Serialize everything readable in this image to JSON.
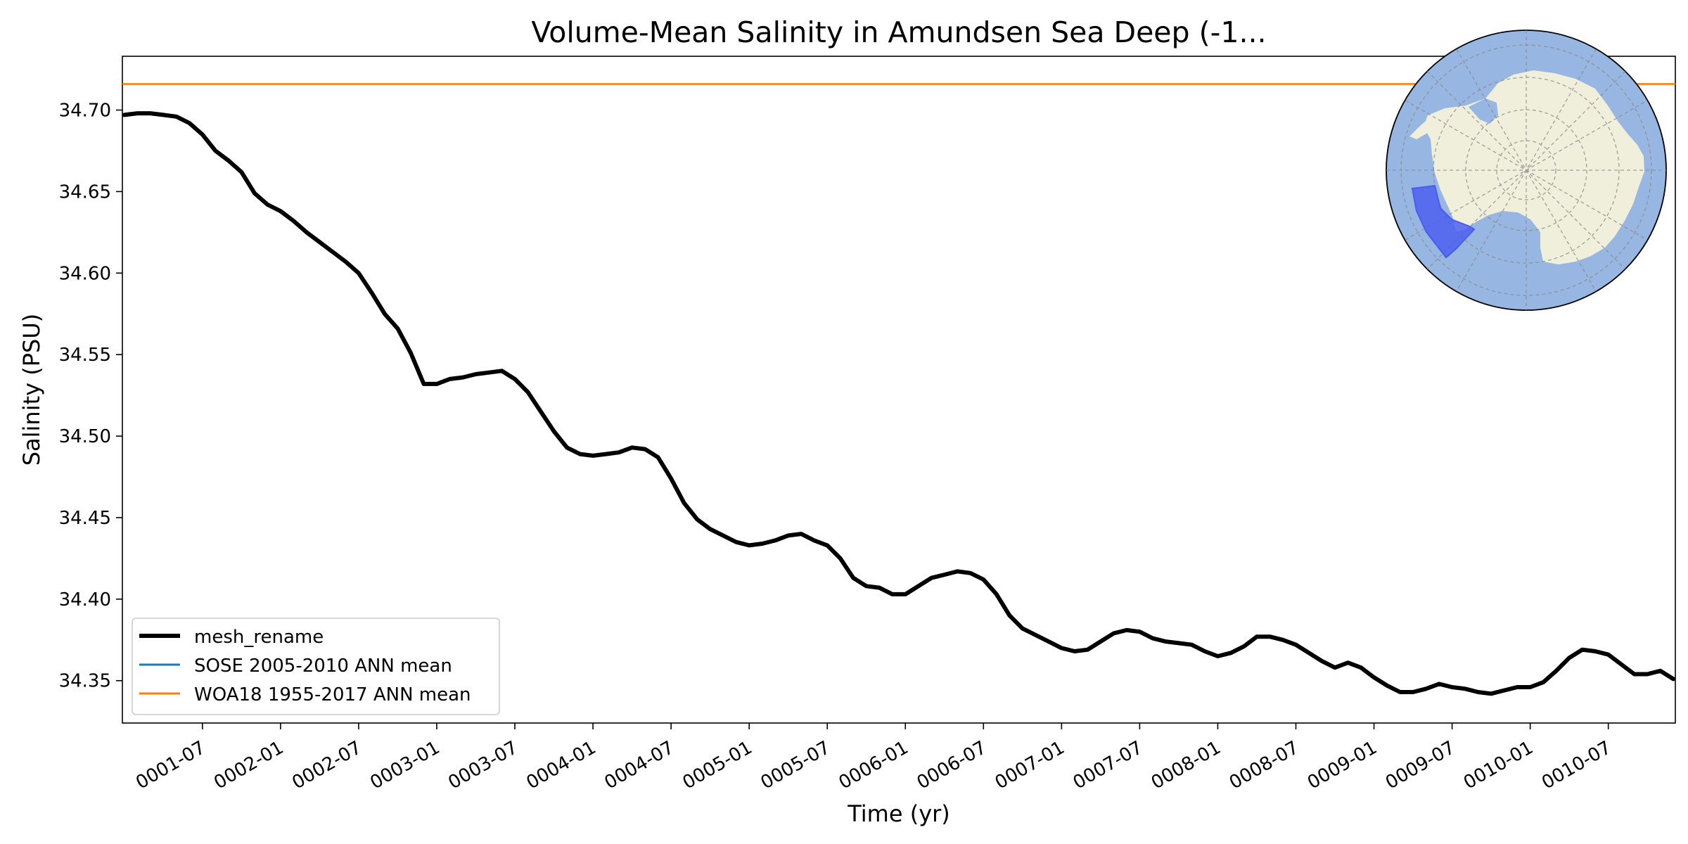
{
  "chart_data": {
    "type": "line",
    "title": "Volume-Mean Salinity in Amundsen Sea Deep (-1...",
    "xlabel": "Time (yr)",
    "ylabel": "Salinity (PSU)",
    "x_ticks": [
      "0001-07",
      "0002-01",
      "0002-07",
      "0003-01",
      "0003-07",
      "0004-01",
      "0004-07",
      "0005-01",
      "0005-07",
      "0006-01",
      "0006-07",
      "0007-01",
      "0007-07",
      "0008-01",
      "0008-07",
      "0009-01",
      "0009-07",
      "0010-01",
      "0010-07"
    ],
    "y_ticks": [
      "34.35",
      "34.40",
      "34.45",
      "34.50",
      "34.55",
      "34.60",
      "34.65",
      "34.70"
    ],
    "xlim": [
      "0001-01",
      "0010-12"
    ],
    "ylim": [
      34.324,
      34.733
    ],
    "grid": false,
    "legend_position": "lower left",
    "series": [
      {
        "name": "mesh_rename",
        "color": "#000000",
        "x": [
          "0001-01",
          "0001-02",
          "0001-03",
          "0001-04",
          "0001-05",
          "0001-06",
          "0001-07",
          "0001-08",
          "0001-09",
          "0001-10",
          "0001-11",
          "0001-12",
          "0002-01",
          "0002-02",
          "0002-03",
          "0002-04",
          "0002-05",
          "0002-06",
          "0002-07",
          "0002-08",
          "0002-09",
          "0002-10",
          "0002-11",
          "0002-12",
          "0003-01",
          "0003-02",
          "0003-03",
          "0003-04",
          "0003-05",
          "0003-06",
          "0003-07",
          "0003-08",
          "0003-09",
          "0003-10",
          "0003-11",
          "0003-12",
          "0004-01",
          "0004-02",
          "0004-03",
          "0004-04",
          "0004-05",
          "0004-06",
          "0004-07",
          "0004-08",
          "0004-09",
          "0004-10",
          "0004-11",
          "0004-12",
          "0005-01",
          "0005-02",
          "0005-03",
          "0005-04",
          "0005-05",
          "0005-06",
          "0005-07",
          "0005-08",
          "0005-09",
          "0005-10",
          "0005-11",
          "0005-12",
          "0006-01",
          "0006-02",
          "0006-03",
          "0006-04",
          "0006-05",
          "0006-06",
          "0006-07",
          "0006-08",
          "0006-09",
          "0006-10",
          "0006-11",
          "0006-12",
          "0007-01",
          "0007-02",
          "0007-03",
          "0007-04",
          "0007-05",
          "0007-06",
          "0007-07",
          "0007-08",
          "0007-09",
          "0007-10",
          "0007-11",
          "0007-12",
          "0008-01",
          "0008-02",
          "0008-03",
          "0008-04",
          "0008-05",
          "0008-06",
          "0008-07",
          "0008-08",
          "0008-09",
          "0008-10",
          "0008-11",
          "0008-12",
          "0009-01",
          "0009-02",
          "0009-03",
          "0009-04",
          "0009-05",
          "0009-06",
          "0009-07",
          "0009-08",
          "0009-09",
          "0009-10",
          "0009-11",
          "0009-12",
          "0010-01",
          "0010-02",
          "0010-03",
          "0010-04",
          "0010-05",
          "0010-06",
          "0010-07",
          "0010-08",
          "0010-09",
          "0010-10",
          "0010-11",
          "0010-12"
        ],
        "y": [
          34.697,
          34.698,
          34.698,
          34.697,
          34.696,
          34.692,
          34.685,
          34.675,
          34.669,
          34.662,
          34.649,
          34.642,
          34.638,
          34.632,
          34.625,
          34.619,
          34.613,
          34.607,
          34.6,
          34.588,
          34.575,
          34.566,
          34.551,
          34.532,
          34.532,
          34.535,
          34.536,
          34.538,
          34.539,
          34.54,
          34.535,
          34.527,
          34.515,
          34.503,
          34.493,
          34.489,
          34.488,
          34.489,
          34.49,
          34.493,
          34.492,
          34.487,
          34.474,
          34.459,
          34.449,
          34.443,
          34.439,
          34.435,
          34.433,
          34.434,
          34.436,
          34.439,
          34.44,
          34.436,
          34.433,
          34.425,
          34.413,
          34.408,
          34.407,
          34.403,
          34.403,
          34.408,
          34.413,
          34.415,
          34.417,
          34.416,
          34.412,
          34.403,
          34.39,
          34.382,
          34.378,
          34.374,
          34.37,
          34.368,
          34.369,
          34.374,
          34.379,
          34.381,
          34.38,
          34.376,
          34.374,
          34.373,
          34.372,
          34.368,
          34.365,
          34.367,
          34.371,
          34.377,
          34.377,
          34.375,
          34.372,
          34.367,
          34.362,
          34.358,
          34.361,
          34.358,
          34.352,
          34.347,
          34.343,
          34.343,
          34.345,
          34.348,
          34.346,
          34.345,
          34.343,
          34.342,
          34.344,
          34.346,
          34.346,
          34.349,
          34.356,
          34.364,
          34.369,
          34.368,
          34.366,
          34.36,
          34.354,
          34.354,
          34.356,
          34.351
        ]
      },
      {
        "name": "SOSE 2005-2010 ANN mean",
        "color": "#1f77b4",
        "y_const": null
      },
      {
        "name": "WOA18 1955-2017 ANN mean",
        "color": "#ff7f0e",
        "y_const": 34.716
      }
    ],
    "inset": {
      "type": "polar-map",
      "region": "Amundsen Sea",
      "ocean_color": "#97b6e2",
      "land_color": "#efefdb",
      "region_color": "#4a5cf0"
    }
  }
}
